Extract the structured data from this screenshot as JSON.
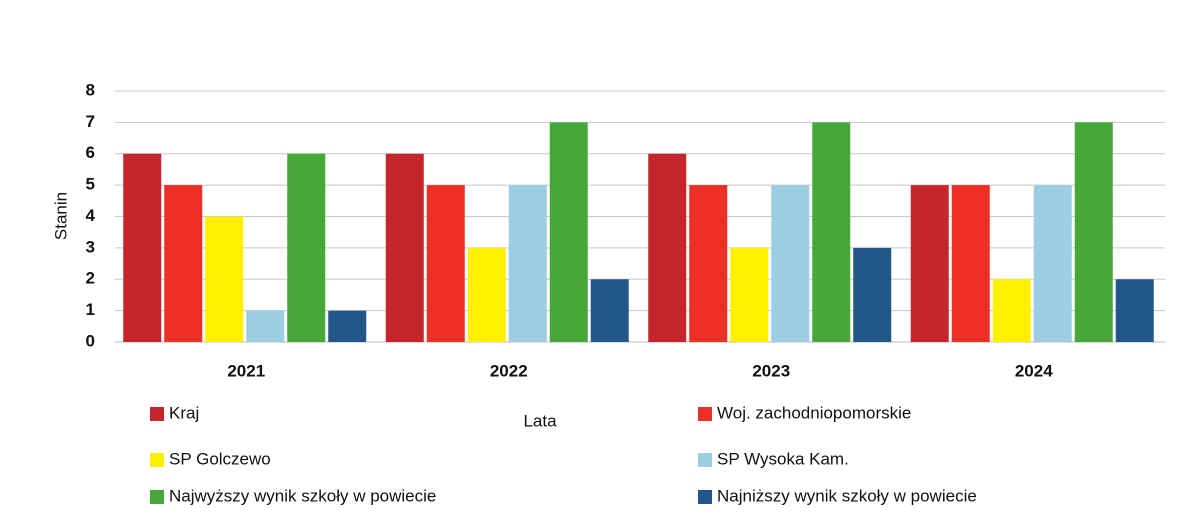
{
  "chart_data": {
    "type": "bar",
    "categories": [
      "2021",
      "2022",
      "2023",
      "2024"
    ],
    "series": [
      {
        "name": "Kraj",
        "color": "#c4262c",
        "values": [
          6,
          6,
          6,
          5
        ]
      },
      {
        "name": "Woj. zachodniopomorskie",
        "color": "#ee2f26",
        "values": [
          5,
          5,
          5,
          5
        ]
      },
      {
        "name": "SP Golczewo",
        "color": "#fff000",
        "values": [
          4,
          3,
          3,
          2
        ]
      },
      {
        "name": "SP Wysoka Kam.",
        "color": "#9ccde2",
        "values": [
          1,
          5,
          5,
          5
        ]
      },
      {
        "name": "Najwyższy wynik szkoły w powiecie",
        "color": "#47a83a",
        "values": [
          6,
          7,
          7,
          7
        ]
      },
      {
        "name": "Najniższy wynik szkoły w powiecie",
        "color": "#22578a",
        "values": [
          1,
          2,
          3,
          2
        ]
      }
    ],
    "y_label": "Stanin",
    "x_label": "Lata",
    "ylim": [
      0,
      8
    ],
    "yticks": [
      0,
      1,
      2,
      3,
      4,
      5,
      6,
      7,
      8
    ],
    "grid": true,
    "legend": "bottom"
  }
}
